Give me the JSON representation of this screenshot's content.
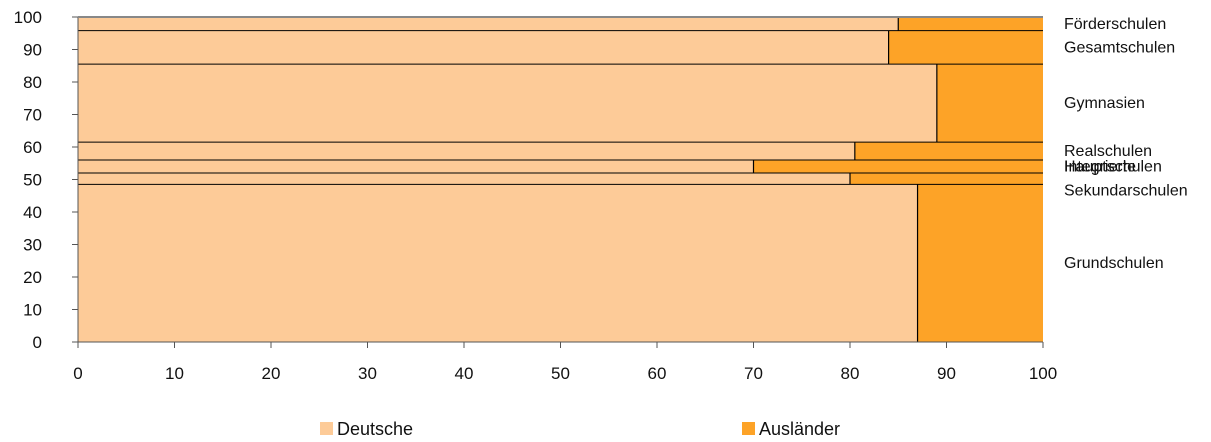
{
  "chart_data": {
    "type": "bar",
    "subtype": "stacked-horizontal-mosaic",
    "xlim": [
      0,
      100
    ],
    "ylim": [
      0,
      100
    ],
    "x_ticks": [
      "0",
      "10",
      "20",
      "30",
      "40",
      "50",
      "60",
      "70",
      "80",
      "90",
      "100"
    ],
    "y_ticks": [
      "0",
      "10",
      "20",
      "30",
      "40",
      "50",
      "60",
      "70",
      "80",
      "90",
      "100"
    ],
    "series": [
      {
        "name": "Deutsche",
        "color": "#fdcb98"
      },
      {
        "name": "Ausländer",
        "color": "#fda327"
      }
    ],
    "categories": [
      {
        "label": [
          "Grundschulen"
        ],
        "y_from": 0,
        "y_to": 48.5,
        "deutsche": 87
      },
      {
        "label": [
          "Integrierte",
          "Sekundarschulen"
        ],
        "y_from": 48.5,
        "y_to": 52,
        "deutsche": 80
      },
      {
        "label": [
          "Hauptschulen"
        ],
        "y_from": 52,
        "y_to": 56,
        "deutsche": 70
      },
      {
        "label": [
          "Realschulen"
        ],
        "y_from": 56,
        "y_to": 61.5,
        "deutsche": 80.5
      },
      {
        "label": [
          "Gymnasien"
        ],
        "y_from": 61.5,
        "y_to": 85.5,
        "deutsche": 89
      },
      {
        "label": [
          "Gesamtschulen"
        ],
        "y_from": 85.5,
        "y_to": 95.8,
        "deutsche": 84
      },
      {
        "label": [
          "Förderschulen"
        ],
        "y_from": 95.8,
        "y_to": 100,
        "deutsche": 85
      }
    ],
    "grid": false,
    "legend": "bottom"
  }
}
